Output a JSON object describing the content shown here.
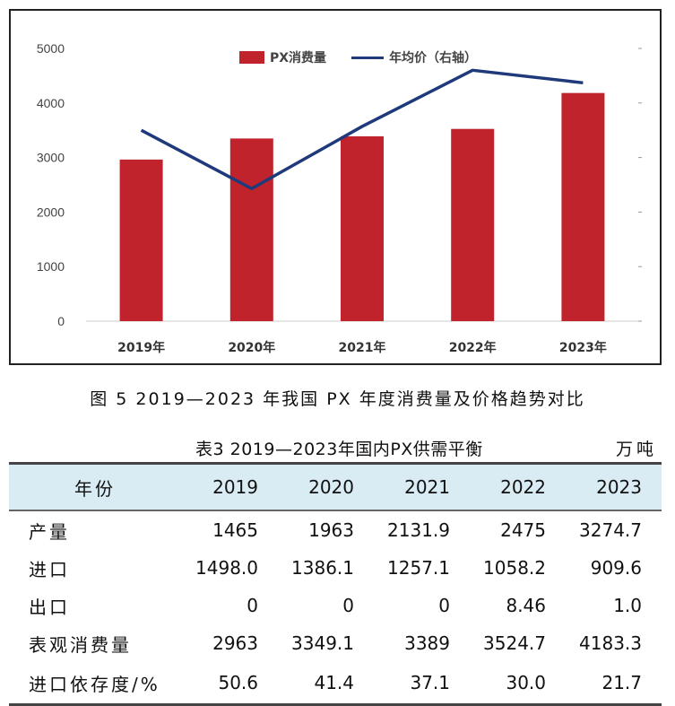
{
  "chart_data": {
    "type": "bar",
    "categories": [
      "2019年",
      "2020年",
      "2021年",
      "2022年",
      "2023年"
    ],
    "series": [
      {
        "name": "PX消费量",
        "type": "bar",
        "values": [
          2963,
          3349.1,
          3389,
          3524.7,
          4183.3
        ],
        "color": "#c0232b"
      },
      {
        "name": "年均价（右轴）",
        "type": "line",
        "values": [
          3500,
          2430,
          3570,
          4600,
          4370
        ],
        "color": "#1f3a7a"
      }
    ],
    "ylim": [
      0,
      5000
    ],
    "yticks": [
      "5000",
      "4000",
      "3000",
      "2000",
      "1000",
      "0"
    ],
    "grid": false,
    "legend": "top-center"
  },
  "figure_caption": "图 5  2019—2023 年我国 PX 年度消费量及价格趋势对比",
  "table": {
    "caption": "表3  2019—2023年国内PX供需平衡",
    "unit": "万吨",
    "headers": [
      "年份",
      "2019",
      "2020",
      "2021",
      "2022",
      "2023"
    ],
    "rows": [
      [
        "产量",
        "1465",
        "1963",
        "2131.9",
        "2475",
        "3274.7"
      ],
      [
        "进口",
        "1498.0",
        "1386.1",
        "1257.1",
        "1058.2",
        "909.6"
      ],
      [
        "出口",
        "0",
        "0",
        "0",
        "8.46",
        "1.0"
      ],
      [
        "表观消费量",
        "2963",
        "3349.1",
        "3389",
        "3524.7",
        "4183.3"
      ],
      [
        "进口依存度/%",
        "50.6",
        "41.4",
        "37.1",
        "30.0",
        "21.7"
      ]
    ]
  }
}
